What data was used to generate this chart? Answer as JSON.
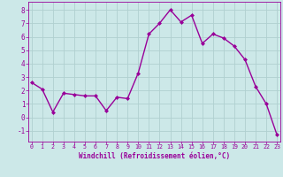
{
  "x": [
    0,
    1,
    2,
    3,
    4,
    5,
    6,
    7,
    8,
    9,
    10,
    11,
    12,
    13,
    14,
    15,
    16,
    17,
    18,
    19,
    20,
    21,
    22,
    23
  ],
  "y": [
    2.6,
    2.1,
    0.4,
    1.8,
    1.7,
    1.6,
    1.6,
    0.5,
    1.5,
    1.4,
    3.3,
    6.2,
    7.0,
    8.0,
    7.1,
    7.6,
    5.5,
    6.2,
    5.9,
    5.3,
    4.3,
    2.3,
    1.0,
    -1.3
  ],
  "line_color": "#990099",
  "marker": "D",
  "marker_size": 2.0,
  "line_width": 1.0,
  "bg_color": "#cce8e8",
  "grid_color": "#b0d0d0",
  "xlabel": "Windchill (Refroidissement éolien,°C)",
  "tick_color": "#990099",
  "ylim": [
    -1.8,
    8.6
  ],
  "yticks": [
    -1,
    0,
    1,
    2,
    3,
    4,
    5,
    6,
    7,
    8
  ],
  "xticks": [
    0,
    1,
    2,
    3,
    4,
    5,
    6,
    7,
    8,
    9,
    10,
    11,
    12,
    13,
    14,
    15,
    16,
    17,
    18,
    19,
    20,
    21,
    22,
    23
  ],
  "xlim": [
    -0.3,
    23.3
  ]
}
